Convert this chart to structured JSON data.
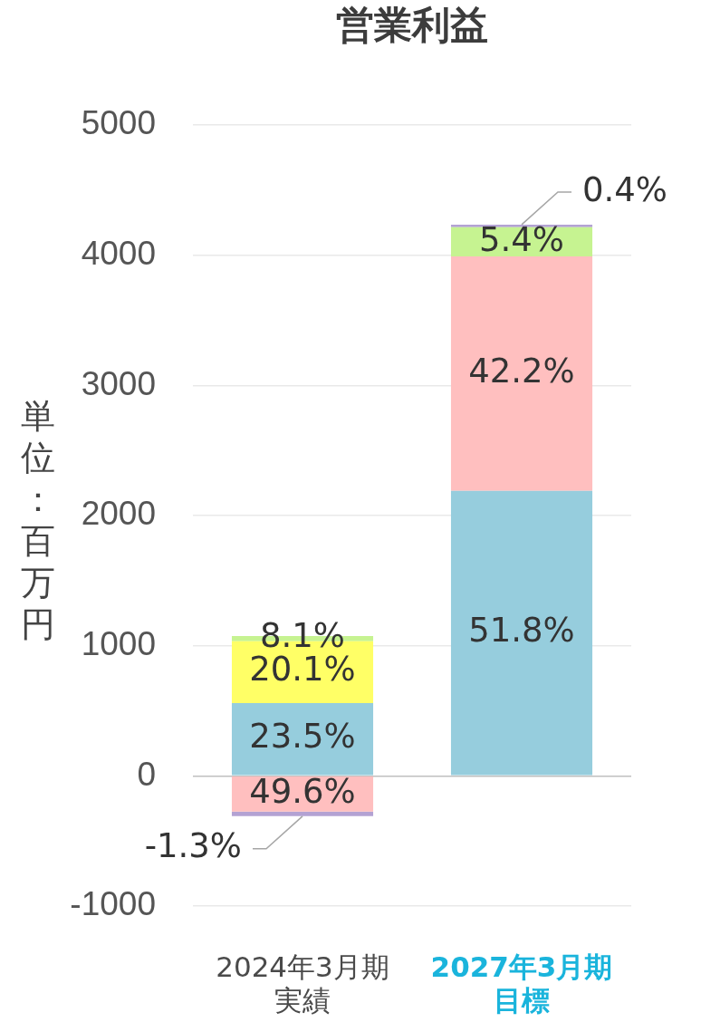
{
  "chart_data": {
    "type": "bar",
    "title": "営業利益",
    "ylabel": "単位：百万円",
    "categories": [
      "2024年3月期実績",
      "2027年3月期目標"
    ],
    "stacked": true,
    "series": [
      {
        "color": "#96cddd",
        "values": [
          560,
          2190
        ]
      },
      {
        "color": "#ffbfbf",
        "values": [
          -275,
          1800
        ]
      },
      {
        "color": "#ffff66",
        "values": [
          475,
          null
        ]
      },
      {
        "color": "#c6f391",
        "values": [
          40,
          225
        ]
      },
      {
        "color": "#b3a2d3",
        "values": [
          -35,
          20
        ]
      }
    ],
    "annotations": [
      {
        "text": "23.5%",
        "x": "2024年3月期実績",
        "y": 560
      },
      {
        "text": "20.1%",
        "x": "2024年3月期実績",
        "y": 1035
      },
      {
        "text": "8.1%",
        "x": "2024年3月期実績",
        "y": 1075
      },
      {
        "text": "49.6%",
        "x": "2024年3月期実績",
        "y": -275
      },
      {
        "text": "-1.3%",
        "x": "2024年3月期実績",
        "y": -310
      },
      "51.8%",
      {
        "text": "42.2%",
        "x": "2027年3月期目標",
        "y": 3990
      },
      {
        "text": "5.4%",
        "x": "2027年3月期目標",
        "y": 4215
      },
      {
        "text": "0.4%",
        "x": "2027年3月期目標",
        "y": 4235
      }
    ],
    "ylim": [
      -1000,
      5000
    ],
    "yticks": [
      -1000,
      0,
      1000,
      2000,
      3000,
      4000,
      5000
    ],
    "grid": "y",
    "legend": false
  }
}
